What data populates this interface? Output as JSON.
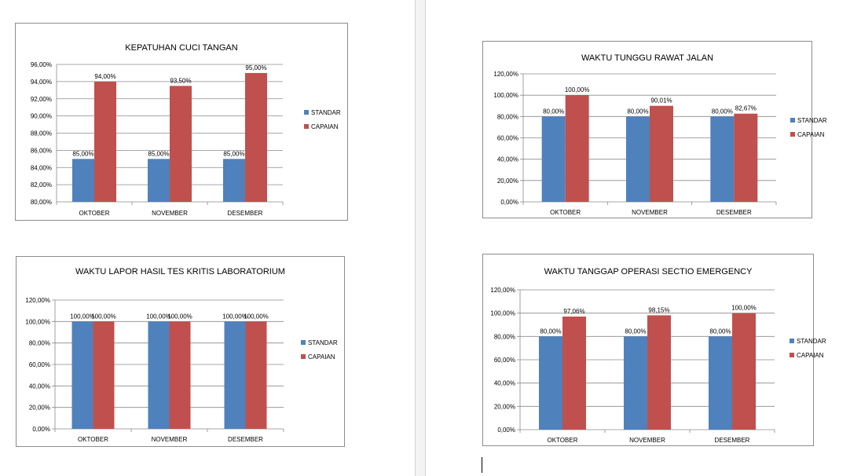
{
  "legend_labels": {
    "standar": "STANDAR",
    "capaian": "CAPAIAN"
  },
  "colors": {
    "standar": "#4f81bd",
    "capaian": "#c0504d",
    "grid": "#8a8a8a",
    "text": "#000000"
  },
  "chart_data": [
    {
      "type": "bar",
      "title": "KEPATUHAN CUCI TANGAN",
      "xlabel": "",
      "ylabel": "",
      "categories": [
        "OKTOBER",
        "NOVEMBER",
        "DESEMBER"
      ],
      "ylim": [
        80,
        96
      ],
      "ystep": 2,
      "y_tick_labels": [
        "80,00%",
        "82,00%",
        "84,00%",
        "86,00%",
        "88,00%",
        "90,00%",
        "92,00%",
        "94,00%",
        "96,00%"
      ],
      "grid": true,
      "legend": "right",
      "series": [
        {
          "name": "STANDAR",
          "values": [
            85,
            85,
            85
          ],
          "labels": [
            "85,00%",
            "85,00%",
            "85,00%"
          ]
        },
        {
          "name": "CAPAIAN",
          "values": [
            94,
            93.5,
            95
          ],
          "labels": [
            "94,00%",
            "93,50%",
            "95,00%"
          ]
        }
      ]
    },
    {
      "type": "bar",
      "title": "WAKTU TUNGGU RAWAT JALAN",
      "xlabel": "",
      "ylabel": "",
      "categories": [
        "OKTOBER",
        "NOVEMBER",
        "DESEMBER"
      ],
      "ylim": [
        0,
        120
      ],
      "ystep": 20,
      "y_tick_labels": [
        "0,00%",
        "20,00%",
        "40,00%",
        "60,00%",
        "80,00%",
        "100,00%",
        "120,00%"
      ],
      "grid": true,
      "legend": "right",
      "series": [
        {
          "name": "STANDAR",
          "values": [
            80,
            80,
            80
          ],
          "labels": [
            "80,00%",
            "80,00%",
            "80,00%"
          ]
        },
        {
          "name": "CAPAIAN",
          "values": [
            100,
            90.01,
            82.67
          ],
          "labels": [
            "100,00%",
            "90,01%",
            "82,67%"
          ]
        }
      ]
    },
    {
      "type": "bar",
      "title": "WAKTU LAPOR HASIL TES KRITIS LABORATORIUM",
      "xlabel": "",
      "ylabel": "",
      "categories": [
        "OKTOBER",
        "NOVEMBER",
        "DESEMBER"
      ],
      "ylim": [
        0,
        120
      ],
      "ystep": 20,
      "y_tick_labels": [
        "0,00%",
        "20,00%",
        "40,00%",
        "60,00%",
        "80,00%",
        "100,00%",
        "120,00%"
      ],
      "grid": true,
      "legend": "right",
      "series": [
        {
          "name": "STANDAR",
          "values": [
            100,
            100,
            100
          ],
          "labels": [
            "100,00%",
            "100,00%",
            "100,00%"
          ]
        },
        {
          "name": "CAPAIAN",
          "values": [
            100,
            100,
            100
          ],
          "labels": [
            "100,00%",
            "100,00%",
            "100,00%"
          ]
        }
      ]
    },
    {
      "type": "bar",
      "title": "WAKTU TANGGAP OPERASI SECTIO EMERGENCY",
      "xlabel": "",
      "ylabel": "",
      "categories": [
        "OKTOBER",
        "NOVEMBER",
        "DESEMBER"
      ],
      "ylim": [
        0,
        120
      ],
      "ystep": 20,
      "y_tick_labels": [
        "0,00%",
        "20,00%",
        "40,00%",
        "60,00%",
        "80,00%",
        "100,00%",
        "120,00%"
      ],
      "grid": true,
      "legend": "right",
      "series": [
        {
          "name": "STANDAR",
          "values": [
            80,
            80,
            80
          ],
          "labels": [
            "80,00%",
            "80,00%",
            "80,00%"
          ]
        },
        {
          "name": "CAPAIAN",
          "values": [
            97.06,
            98.15,
            100
          ],
          "labels": [
            "97,06%",
            "98,15%",
            "100,00%"
          ]
        }
      ]
    }
  ]
}
